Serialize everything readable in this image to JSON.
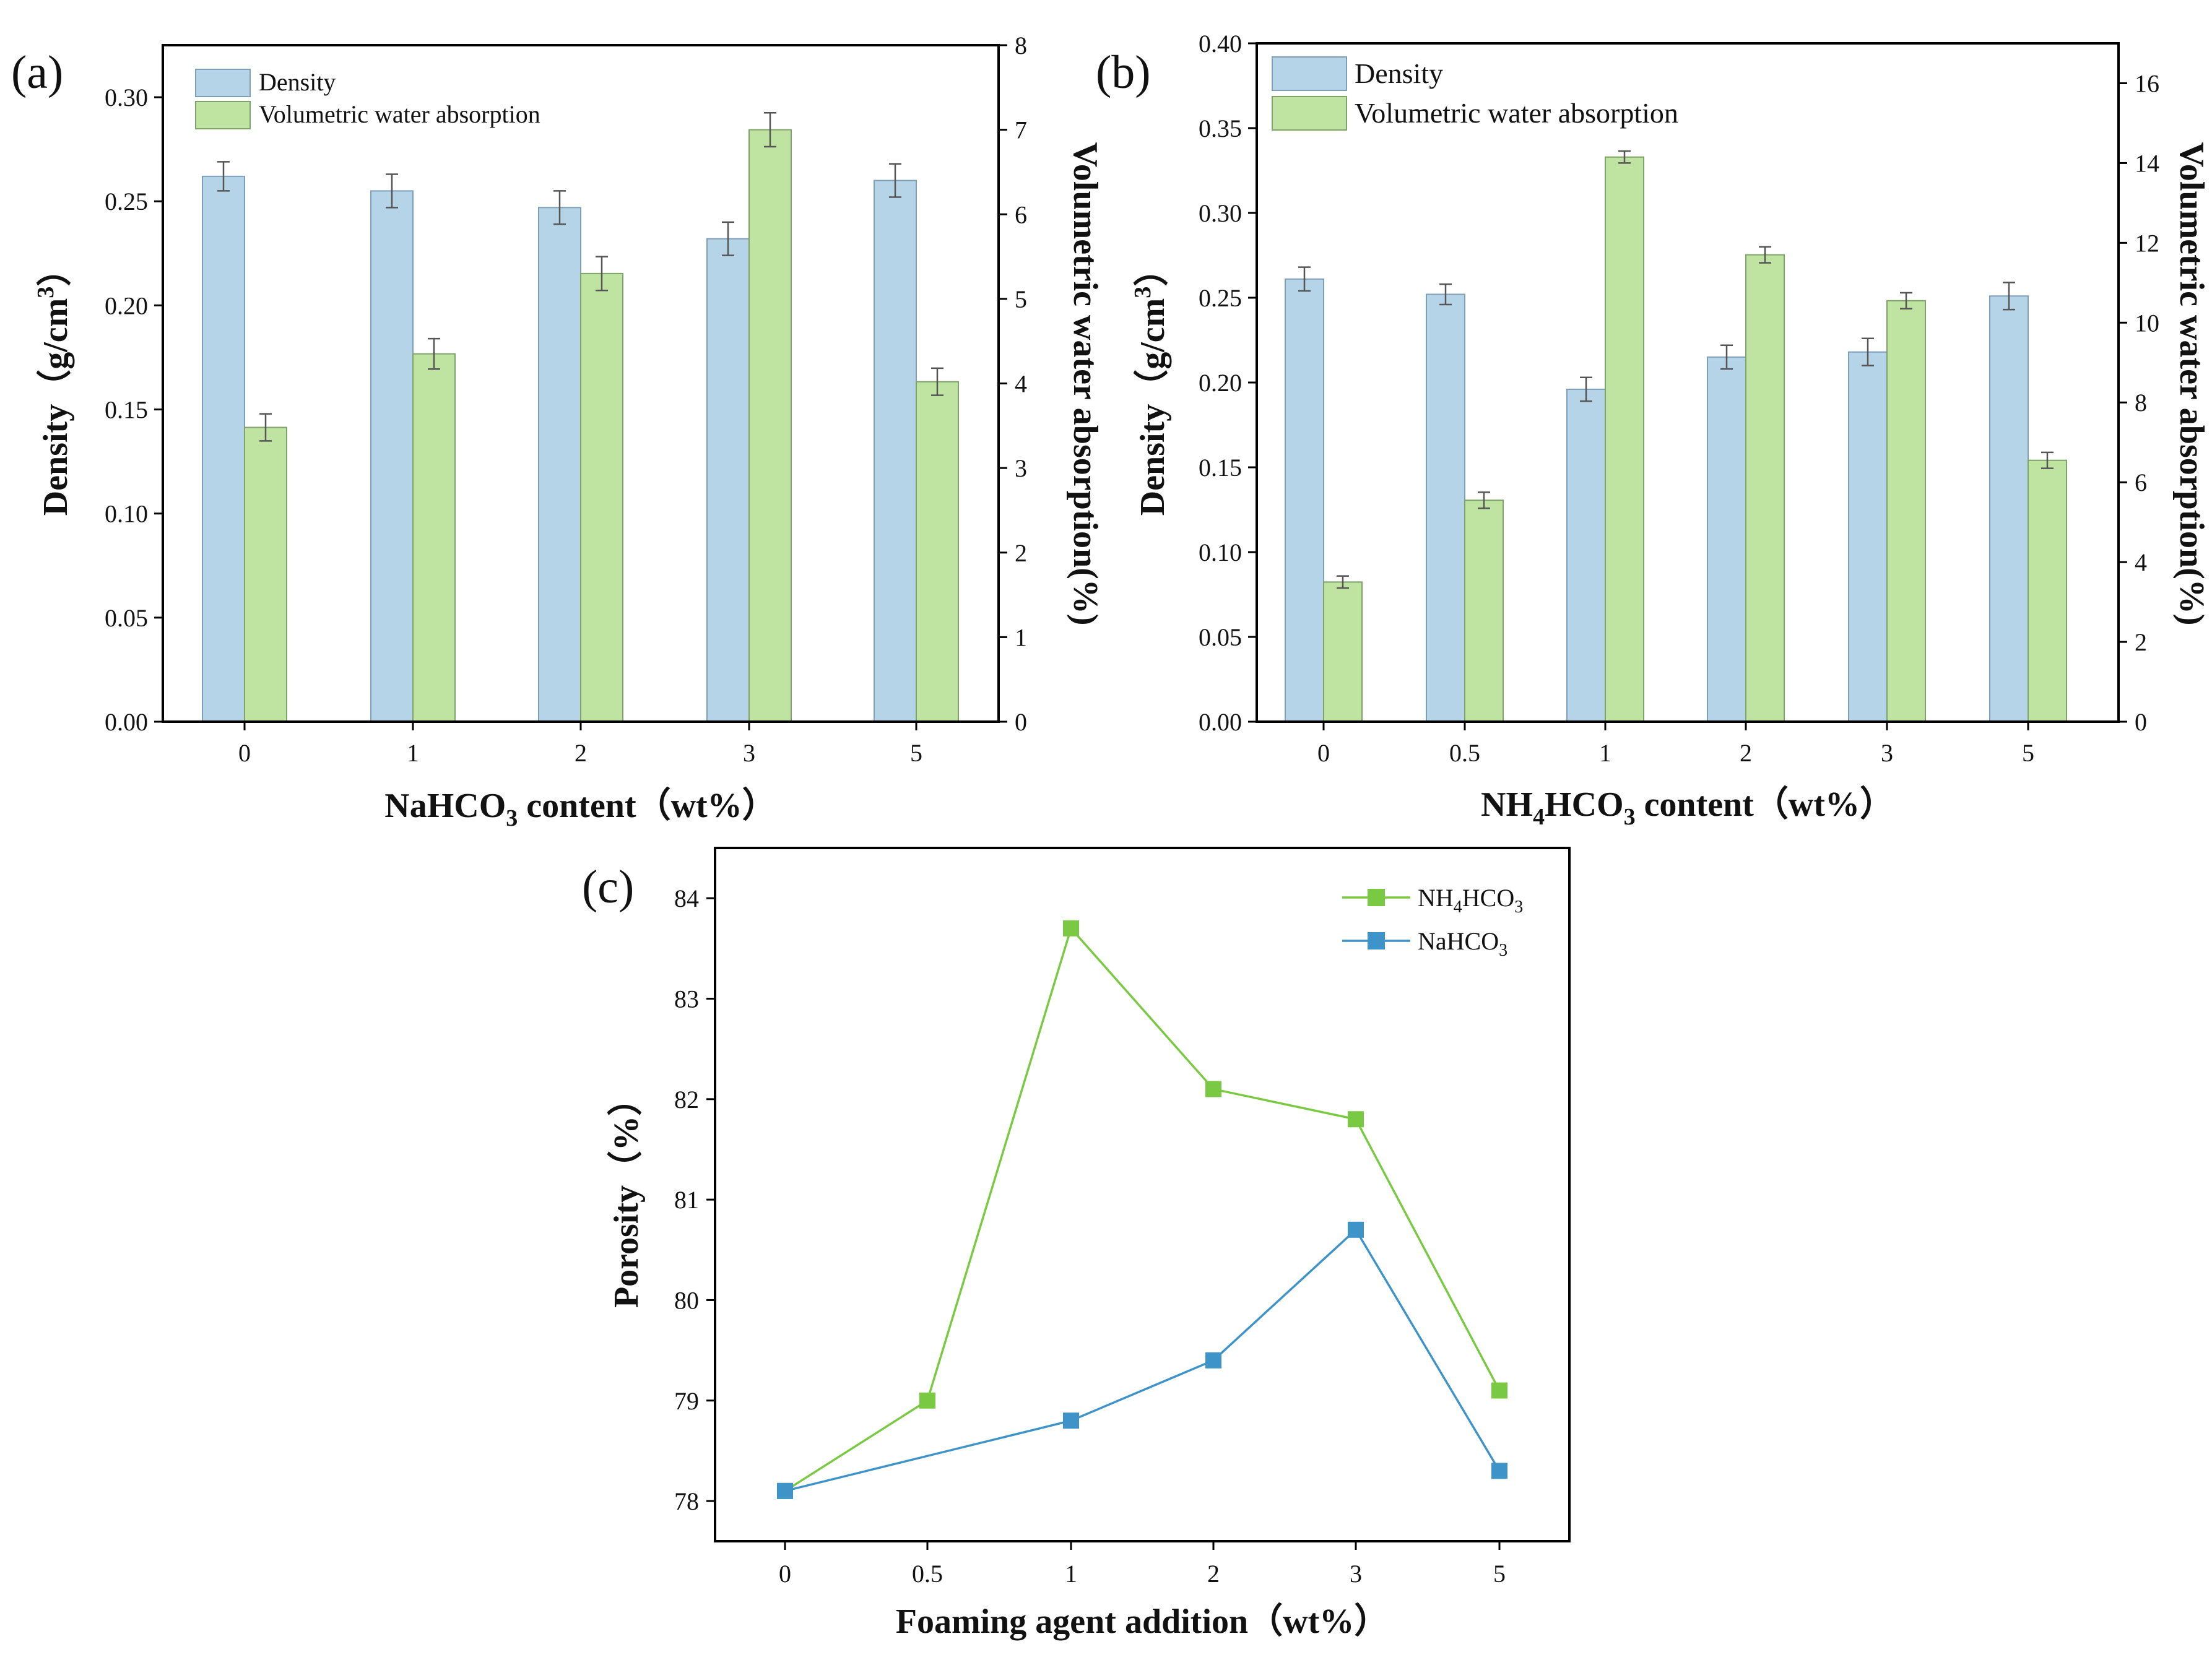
{
  "colors": {
    "density": "#b6d4e8",
    "density_edge": "#7f9fb8",
    "absorption": "#bfe3a0",
    "absorption_edge": "#7fa268",
    "nh4_line": "#7ac943",
    "na_line": "#3e93c9"
  },
  "chart_data": [
    {
      "id": "a",
      "type": "bar",
      "panel_label": "(a)",
      "categories": [
        "0",
        "1",
        "2",
        "3",
        "5"
      ],
      "xlabel_main": "NaHCO",
      "xlabel_sub": "3",
      "xlabel_tail": " content（wt%）",
      "ylabel_left": "Density（g/cm",
      "ylabel_left_sup": "3",
      "ylabel_left_tail": "）",
      "ylabel_right": "Volumetric water absorption(%)",
      "ylim_left": [
        0,
        0.325
      ],
      "ylim_right": [
        0,
        8
      ],
      "left_ticks": [
        "0.00",
        "0.05",
        "0.10",
        "0.15",
        "0.20",
        "0.25",
        "0.30"
      ],
      "right_ticks": [
        "0",
        "1",
        "2",
        "3",
        "4",
        "5",
        "6",
        "7",
        "8"
      ],
      "legend": [
        "Density",
        "Volumetric water absorption"
      ],
      "series": [
        {
          "name": "Density",
          "axis": "left",
          "values": [
            0.262,
            0.255,
            0.247,
            0.232,
            0.26
          ],
          "errors": [
            0.007,
            0.008,
            0.008,
            0.008,
            0.008
          ]
        },
        {
          "name": "Volumetric water absorption",
          "axis": "right",
          "values": [
            3.48,
            4.35,
            5.3,
            7.0,
            4.02
          ],
          "errors": [
            0.16,
            0.18,
            0.2,
            0.2,
            0.16
          ]
        }
      ]
    },
    {
      "id": "b",
      "type": "bar",
      "panel_label": "(b)",
      "categories": [
        "0",
        "0.5",
        "1",
        "2",
        "3",
        "5"
      ],
      "xlabel_main": "NH",
      "xlabel_sub": "4",
      "xlabel_mid": "HCO",
      "xlabel_sub2": "3",
      "xlabel_tail": " content（wt%）",
      "ylabel_left": "Density（g/cm",
      "ylabel_left_sup": "3",
      "ylabel_left_tail": "）",
      "ylabel_right": "Volumetric water absorption(%)",
      "ylim_left": [
        0,
        0.4
      ],
      "ylim_right": [
        0,
        17
      ],
      "left_ticks": [
        "0.00",
        "0.05",
        "0.10",
        "0.15",
        "0.20",
        "0.25",
        "0.30",
        "0.35",
        "0.40"
      ],
      "right_ticks": [
        "0",
        "2",
        "4",
        "6",
        "8",
        "10",
        "12",
        "14",
        "16"
      ],
      "legend": [
        "Density",
        "Volumetric water absorption"
      ],
      "series": [
        {
          "name": "Density",
          "axis": "left",
          "values": [
            0.261,
            0.252,
            0.196,
            0.215,
            0.218,
            0.251
          ],
          "errors": [
            0.007,
            0.006,
            0.007,
            0.007,
            0.008,
            0.008
          ]
        },
        {
          "name": "Volumetric water absorption",
          "axis": "right",
          "values": [
            3.5,
            5.55,
            14.15,
            11.7,
            10.55,
            6.55
          ],
          "errors": [
            0.15,
            0.2,
            0.15,
            0.2,
            0.2,
            0.2
          ]
        }
      ]
    },
    {
      "id": "c",
      "type": "line",
      "panel_label": "(c)",
      "categories": [
        "0",
        "0.5",
        "1",
        "2",
        "3",
        "5"
      ],
      "xlabel": "Foaming agent addition（wt%）",
      "ylabel": "Porosity（%）",
      "ylim": [
        77.6,
        84.5
      ],
      "y_ticks": [
        "78",
        "79",
        "80",
        "81",
        "82",
        "83",
        "84"
      ],
      "series": [
        {
          "name_main": "NH",
          "name_sub": "4",
          "name_mid": "HCO",
          "name_sub2": "3",
          "values": [
            78.1,
            79.0,
            83.7,
            82.1,
            81.8,
            79.1
          ]
        },
        {
          "name_main": "NaHCO",
          "name_sub": "3",
          "values": [
            78.1,
            null,
            78.8,
            79.4,
            80.7,
            78.3
          ]
        }
      ]
    }
  ]
}
